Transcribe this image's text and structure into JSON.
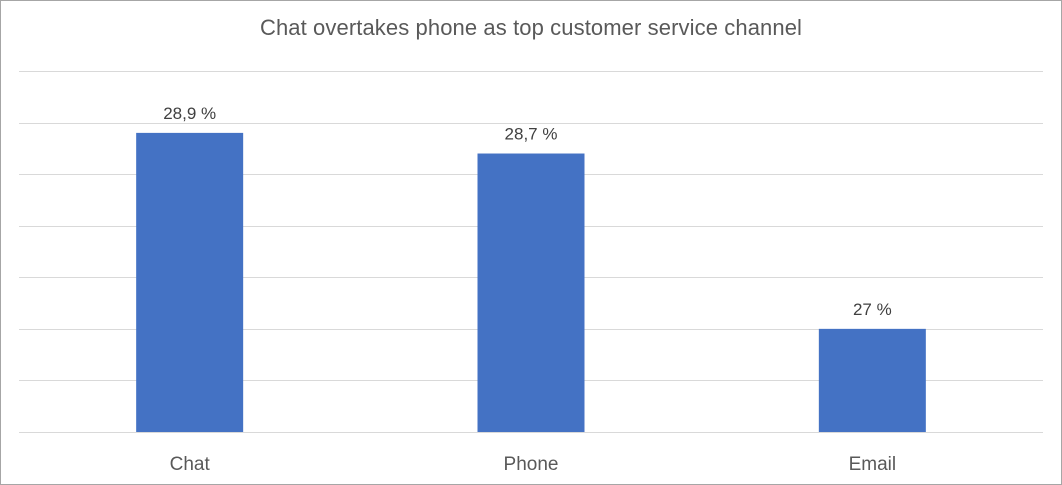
{
  "chart_data": {
    "type": "bar",
    "title": "Chat overtakes phone as top customer service channel",
    "categories": [
      "Chat",
      "Phone",
      "Email"
    ],
    "values": [
      28.9,
      28.7,
      27
    ],
    "data_labels": [
      "28,9 %",
      "28,7 %",
      "27 %"
    ],
    "xlabel": "",
    "ylabel": "",
    "ylim": [
      26.0,
      29.5
    ],
    "y_gridlines": [
      26.0,
      26.5,
      27.0,
      27.5,
      28.0,
      28.5,
      29.0,
      29.5
    ],
    "grid": true,
    "legend": "none",
    "colors": {
      "bar": "#4472c4",
      "grid": "#d9d9d9",
      "title": "#595959"
    }
  }
}
